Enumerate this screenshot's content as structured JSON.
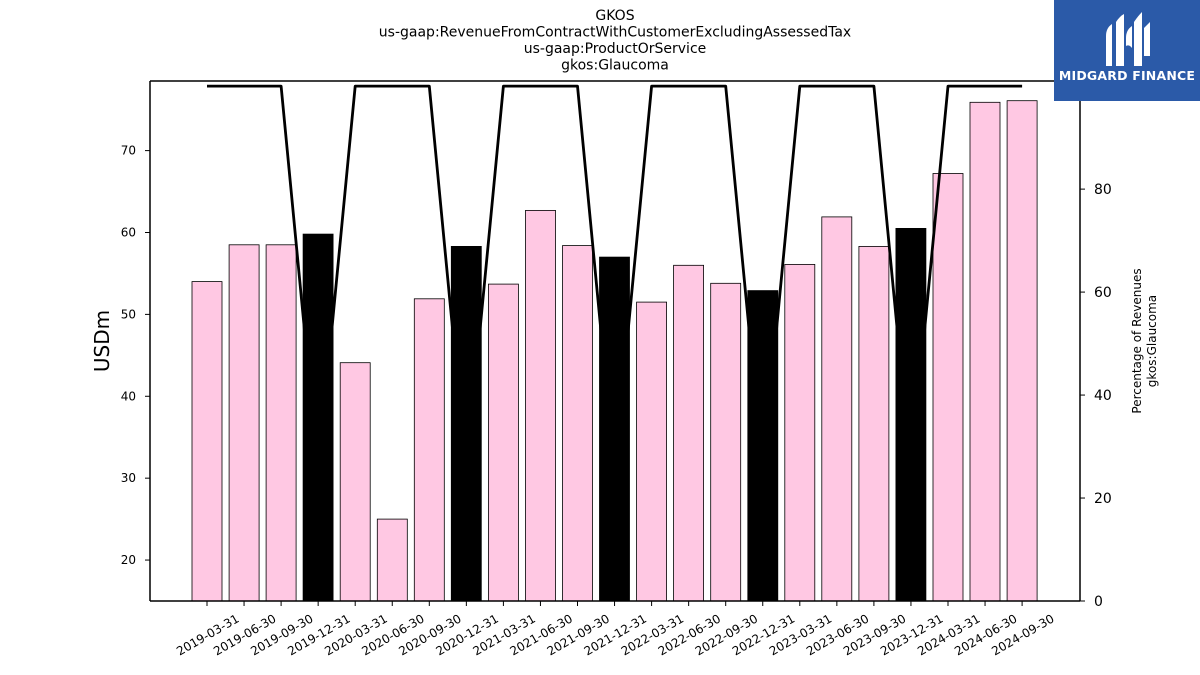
{
  "chart_data": {
    "type": "bar",
    "title_lines": [
      "GKOS",
      "us-gaap:RevenueFromContractWithCustomerExcludingAssessedTax",
      "us-gaap:ProductOrService",
      "gkos:Glaucoma"
    ],
    "ylabel": "USDm",
    "y2label_lines": [
      "Percentage of Revenues",
      "gkos:Glaucoma"
    ],
    "categories": [
      "2019-03-31",
      "2019-06-30",
      "2019-09-30",
      "2019-12-31",
      "2020-03-31",
      "2020-06-30",
      "2020-09-30",
      "2020-12-31",
      "2021-03-31",
      "2021-06-30",
      "2021-09-30",
      "2021-12-31",
      "2022-03-31",
      "2022-06-30",
      "2022-09-30",
      "2022-12-31",
      "2023-03-31",
      "2023-06-30",
      "2023-09-30",
      "2023-12-31",
      "2024-03-31",
      "2024-06-30",
      "2024-09-30"
    ],
    "series": [
      {
        "values": [
          54.0,
          58.5,
          58.5,
          59.8,
          44.1,
          25.0,
          51.9,
          58.3,
          53.7,
          62.7,
          58.4,
          57.0,
          51.5,
          56.0,
          53.8,
          52.9,
          56.1,
          61.9,
          58.3,
          60.5,
          67.2,
          75.9,
          76.1
        ],
        "axis": "left"
      },
      {
        "values": [
          100,
          100,
          100,
          25,
          100,
          100,
          100,
          25,
          100,
          100,
          100,
          25,
          100,
          100,
          100,
          25,
          100,
          100,
          100,
          25,
          100,
          100,
          100
        ],
        "axis": "right",
        "type": "line"
      }
    ],
    "bar_colors": [
      "#ffc8e3",
      "#ffc8e3",
      "#ffc8e3",
      "#000000",
      "#ffc8e3",
      "#ffc8e3",
      "#ffc8e3",
      "#000000",
      "#ffc8e3",
      "#ffc8e3",
      "#ffc8e3",
      "#000000",
      "#ffc8e3",
      "#ffc8e3",
      "#ffc8e3",
      "#000000",
      "#ffc8e3",
      "#ffc8e3",
      "#ffc8e3",
      "#000000",
      "#ffc8e3",
      "#ffc8e3",
      "#ffc8e3"
    ],
    "line_color": "#000000",
    "ylim": [
      15,
      78.5
    ],
    "yticks": [
      20,
      30,
      40,
      50,
      60,
      70
    ],
    "y2lim": [
      0,
      101
    ],
    "y2ticks": [
      0,
      20,
      40,
      60,
      80,
      100
    ],
    "grid": false,
    "legend": "none"
  },
  "logo": {
    "text": "MIDGARD FINANCE",
    "background": "#2b5aa8"
  }
}
